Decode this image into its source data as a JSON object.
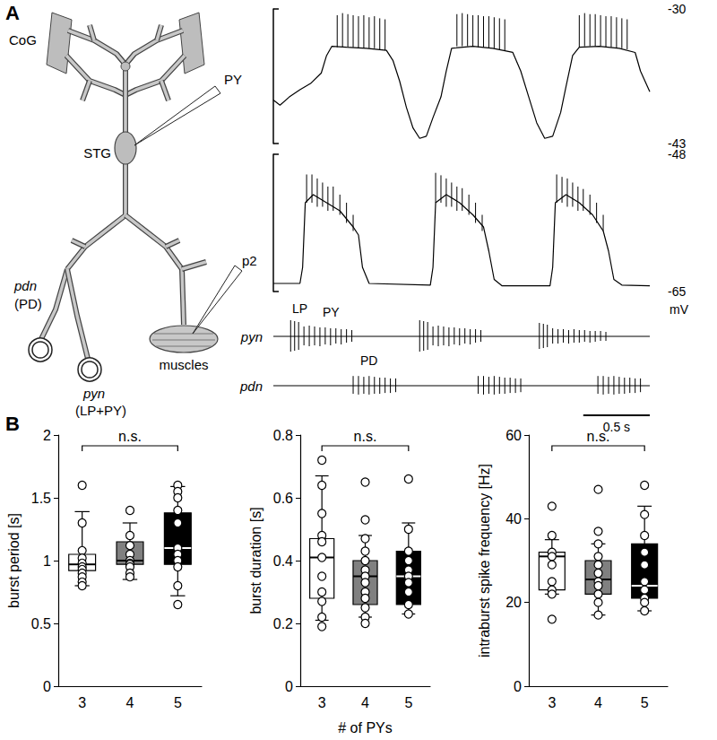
{
  "labels": [
    "A",
    "B"
  ],
  "diagram": {
    "cog": "CoG",
    "py": "PY",
    "stg": "STG",
    "p2": "p2",
    "pdn": "pdn",
    "pdn_sub": "(PD)",
    "pyn": "pyn",
    "pyn_sub": "(LP+PY)",
    "muscles": "muscles"
  },
  "chart_data": [
    {
      "type": "line",
      "xlim": [
        0,
        2.83
      ],
      "ylim": [
        -43,
        -30
      ],
      "yticks": [
        -43,
        -30
      ],
      "x": [
        0,
        0.05,
        0.12,
        0.2,
        0.28,
        0.36,
        0.4,
        0.44,
        0.55,
        0.7,
        0.85,
        0.9,
        0.95,
        1.0,
        1.05,
        1.1,
        1.15,
        1.2,
        1.26,
        1.3,
        1.34,
        1.5,
        1.65,
        1.8,
        1.86,
        1.92,
        1.98,
        2.04,
        2.1,
        2.16,
        2.2,
        2.25,
        2.3,
        2.45,
        2.6,
        2.72,
        2.76,
        2.83
      ],
      "values": [
        -38.8,
        -39.3,
        -38.5,
        -37.8,
        -37.2,
        -36.2,
        -34.5,
        -33.6,
        -33.7,
        -33.8,
        -34,
        -35,
        -37,
        -39.5,
        -41.5,
        -42.5,
        -42.3,
        -40.5,
        -38.5,
        -36,
        -33.8,
        -33.6,
        -33.8,
        -34.2,
        -36,
        -38.5,
        -41,
        -42.5,
        -42.3,
        -40,
        -37.5,
        -34.5,
        -33.7,
        -33.6,
        -33.8,
        -34.2,
        -36,
        -38
      ],
      "spikes": [
        [
          0.48,
          -33.7,
          -30.6
        ],
        [
          0.52,
          -33.7,
          -30.4
        ],
        [
          0.56,
          -33.7,
          -30.5
        ],
        [
          0.6,
          -33.7,
          -30.6
        ],
        [
          0.64,
          -33.8,
          -30.7
        ],
        [
          0.68,
          -33.8,
          -30.6
        ],
        [
          0.72,
          -33.8,
          -30.8
        ],
        [
          0.76,
          -33.8,
          -30.7
        ],
        [
          0.8,
          -33.9,
          -30.9
        ],
        [
          0.84,
          -34,
          -31
        ],
        [
          1.38,
          -33.6,
          -30.5
        ],
        [
          1.42,
          -33.6,
          -30.4
        ],
        [
          1.46,
          -33.6,
          -30.5
        ],
        [
          1.5,
          -33.6,
          -30.6
        ],
        [
          1.54,
          -33.7,
          -30.6
        ],
        [
          1.58,
          -33.7,
          -30.7
        ],
        [
          1.62,
          -33.8,
          -30.7
        ],
        [
          1.66,
          -33.8,
          -30.8
        ],
        [
          1.7,
          -33.9,
          -30.9
        ],
        [
          1.74,
          -34,
          -31
        ],
        [
          2.3,
          -33.7,
          -30.6
        ],
        [
          2.34,
          -33.6,
          -30.4
        ],
        [
          2.38,
          -33.6,
          -30.5
        ],
        [
          2.42,
          -33.6,
          -30.5
        ],
        [
          2.46,
          -33.6,
          -30.6
        ],
        [
          2.5,
          -33.7,
          -30.7
        ],
        [
          2.54,
          -33.7,
          -30.7
        ],
        [
          2.58,
          -33.8,
          -30.8
        ],
        [
          2.62,
          -33.8,
          -30.9
        ],
        [
          2.66,
          -33.9,
          -31
        ]
      ]
    },
    {
      "type": "line",
      "xlim": [
        0,
        2.83
      ],
      "ylim": [
        -65,
        -48
      ],
      "yticks": [
        -65,
        -48
      ],
      "y_label": "mV",
      "x": [
        0,
        0.2,
        0.22,
        0.24,
        0.3,
        0.4,
        0.5,
        0.6,
        0.64,
        0.67,
        0.72,
        1.18,
        1.2,
        1.22,
        1.3,
        1.4,
        1.5,
        1.58,
        1.62,
        1.66,
        1.72,
        2.08,
        2.1,
        2.12,
        2.2,
        2.3,
        2.4,
        2.48,
        2.52,
        2.56,
        2.62,
        2.83
      ],
      "values": [
        -64,
        -64,
        -62,
        -54,
        -53,
        -54,
        -55,
        -57,
        -58,
        -62,
        -64,
        -64.2,
        -62,
        -54,
        -53,
        -54,
        -55.5,
        -57,
        -60,
        -63.5,
        -64.3,
        -64.3,
        -62,
        -54,
        -53,
        -54,
        -55.5,
        -57.5,
        -60,
        -63.5,
        -64.2,
        -64.3
      ],
      "spikes": [
        [
          0.25,
          -54,
          -50.5
        ],
        [
          0.29,
          -54,
          -50.5
        ],
        [
          0.33,
          -54.5,
          -51
        ],
        [
          0.37,
          -54.5,
          -51.5
        ],
        [
          0.41,
          -55,
          -52
        ],
        [
          0.45,
          -55,
          -52
        ],
        [
          0.5,
          -55.5,
          -53
        ],
        [
          0.55,
          -56.5,
          -54
        ],
        [
          0.6,
          -57.5,
          -55.5
        ],
        [
          1.22,
          -54,
          -50.3
        ],
        [
          1.26,
          -54,
          -50.6
        ],
        [
          1.3,
          -54.5,
          -51
        ],
        [
          1.34,
          -54.5,
          -51.5
        ],
        [
          1.38,
          -55,
          -52
        ],
        [
          1.42,
          -55,
          -52.2
        ],
        [
          1.47,
          -55.5,
          -53
        ],
        [
          1.52,
          -56.5,
          -54
        ],
        [
          1.57,
          -57.5,
          -55.5
        ],
        [
          2.13,
          -54,
          -50.5
        ],
        [
          2.17,
          -54,
          -50.8
        ],
        [
          2.21,
          -54.5,
          -51
        ],
        [
          2.25,
          -54.5,
          -51.5
        ],
        [
          2.29,
          -55,
          -52
        ],
        [
          2.33,
          -55,
          -52.3
        ],
        [
          2.38,
          -55.5,
          -53
        ],
        [
          2.43,
          -56.5,
          -54
        ],
        [
          2.48,
          -57.5,
          -55.5
        ]
      ]
    },
    {
      "type": "extracellular",
      "label": "pyn",
      "annotations": [
        "LP",
        "PY"
      ],
      "xlim": [
        0,
        2.83
      ],
      "ylim": [
        -1,
        1
      ],
      "baseline": 0,
      "tick_labels": false,
      "spikes": [
        [
          0.13,
          -0.85,
          0.9
        ],
        [
          0.16,
          -0.8,
          0.85
        ],
        [
          0.19,
          -0.75,
          0.8
        ],
        [
          0.23,
          -0.5,
          0.55
        ],
        [
          0.27,
          -0.55,
          0.6
        ],
        [
          0.31,
          -0.5,
          0.55
        ],
        [
          0.35,
          -0.55,
          0.5
        ],
        [
          0.39,
          -0.45,
          0.5
        ],
        [
          0.43,
          -0.5,
          0.45
        ],
        [
          0.47,
          -0.4,
          0.45
        ],
        [
          0.51,
          -0.45,
          0.4
        ],
        [
          0.55,
          -0.35,
          0.4
        ],
        [
          0.59,
          -0.3,
          0.35
        ],
        [
          1.1,
          -0.85,
          0.9
        ],
        [
          1.13,
          -0.8,
          0.85
        ],
        [
          1.16,
          -0.75,
          0.8
        ],
        [
          1.2,
          -0.5,
          0.55
        ],
        [
          1.24,
          -0.55,
          0.6
        ],
        [
          1.28,
          -0.5,
          0.55
        ],
        [
          1.32,
          -0.55,
          0.5
        ],
        [
          1.36,
          -0.45,
          0.5
        ],
        [
          1.4,
          -0.5,
          0.45
        ],
        [
          1.44,
          -0.4,
          0.45
        ],
        [
          1.48,
          -0.45,
          0.4
        ],
        [
          1.52,
          -0.35,
          0.4
        ],
        [
          1.56,
          -0.3,
          0.35
        ],
        [
          2.0,
          -0.7,
          0.75
        ],
        [
          2.03,
          -0.65,
          0.7
        ],
        [
          2.06,
          -0.6,
          0.65
        ],
        [
          2.1,
          -0.4,
          0.45
        ],
        [
          2.14,
          -0.4,
          0.4
        ],
        [
          2.18,
          -0.35,
          0.4
        ],
        [
          2.22,
          -0.4,
          0.35
        ],
        [
          2.26,
          -0.35,
          0.4
        ],
        [
          2.3,
          -0.35,
          0.35
        ],
        [
          2.34,
          -0.3,
          0.35
        ],
        [
          2.38,
          -0.35,
          0.3
        ],
        [
          2.42,
          -0.3,
          0.3
        ],
        [
          2.46,
          -0.25,
          0.3
        ],
        [
          2.5,
          -0.25,
          0.25
        ]
      ]
    },
    {
      "type": "extracellular",
      "label": "pdn",
      "annotations": [
        "PD"
      ],
      "xlim": [
        0,
        2.83
      ],
      "ylim": [
        -1,
        1
      ],
      "baseline": 0,
      "tick_labels": false,
      "spikes": [
        [
          0.6,
          -0.5,
          0.6
        ],
        [
          0.64,
          -0.55,
          0.6
        ],
        [
          0.68,
          -0.5,
          0.55
        ],
        [
          0.72,
          -0.55,
          0.6
        ],
        [
          0.76,
          -0.5,
          0.55
        ],
        [
          0.8,
          -0.5,
          0.5
        ],
        [
          0.84,
          -0.45,
          0.5
        ],
        [
          0.88,
          -0.45,
          0.45
        ],
        [
          0.92,
          -0.4,
          0.45
        ],
        [
          1.54,
          -0.5,
          0.6
        ],
        [
          1.58,
          -0.55,
          0.6
        ],
        [
          1.62,
          -0.5,
          0.55
        ],
        [
          1.66,
          -0.55,
          0.6
        ],
        [
          1.7,
          -0.5,
          0.55
        ],
        [
          1.74,
          -0.5,
          0.5
        ],
        [
          1.78,
          -0.45,
          0.5
        ],
        [
          1.82,
          -0.45,
          0.45
        ],
        [
          1.86,
          -0.4,
          0.45
        ],
        [
          2.44,
          -0.5,
          0.6
        ],
        [
          2.48,
          -0.55,
          0.6
        ],
        [
          2.52,
          -0.5,
          0.55
        ],
        [
          2.56,
          -0.55,
          0.6
        ],
        [
          2.6,
          -0.5,
          0.55
        ],
        [
          2.64,
          -0.5,
          0.5
        ],
        [
          2.68,
          -0.45,
          0.5
        ],
        [
          2.72,
          -0.45,
          0.45
        ],
        [
          2.76,
          -0.4,
          0.45
        ]
      ]
    },
    {
      "type": "scale_bar",
      "xlim": [
        0,
        2.83
      ],
      "value": 0.5,
      "label": "0.5 s"
    },
    {
      "type": "boxplot",
      "categories": [
        "3",
        "4",
        "5"
      ],
      "colors": [
        "#ffffff",
        "#808080",
        "#000000"
      ],
      "ylabel": "burst period [s]",
      "ylim": [
        0,
        2
      ],
      "yticks": [
        0,
        0.5,
        1,
        1.5,
        2
      ],
      "significance": {
        "label": "n.s.",
        "from": "3",
        "to": "5"
      },
      "boxes": [
        [
          0.8,
          0.92,
          0.97,
          1.05,
          1.39
        ],
        [
          0.85,
          0.97,
          1.0,
          1.15,
          1.3
        ],
        [
          0.72,
          0.97,
          1.1,
          1.38,
          1.59
        ]
      ],
      "points": [
        [
          1.6,
          1.3,
          1.08,
          1.02,
          0.98,
          0.95,
          0.93,
          0.9,
          0.87,
          0.83,
          0.8
        ],
        [
          1.4,
          1.2,
          1.12,
          1.05,
          1.0,
          0.98,
          0.97,
          0.95,
          0.9,
          0.87
        ],
        [
          1.6,
          1.55,
          1.5,
          1.4,
          1.3,
          1.1,
          1.05,
          1.0,
          0.95,
          0.8,
          0.65
        ]
      ]
    },
    {
      "type": "boxplot",
      "categories": [
        "3",
        "4",
        "5"
      ],
      "colors": [
        "#ffffff",
        "#808080",
        "#000000"
      ],
      "ylabel": "burst duration [s]",
      "xlabel": "# of PYs",
      "ylim": [
        0,
        0.8
      ],
      "yticks": [
        0,
        0.2,
        0.4,
        0.6,
        0.8
      ],
      "significance": {
        "label": "n.s.",
        "from": "3",
        "to": "5"
      },
      "boxes": [
        [
          0.21,
          0.28,
          0.41,
          0.47,
          0.67
        ],
        [
          0.22,
          0.26,
          0.35,
          0.4,
          0.48
        ],
        [
          0.23,
          0.26,
          0.35,
          0.43,
          0.52
        ]
      ],
      "points": [
        [
          0.72,
          0.64,
          0.55,
          0.48,
          0.46,
          0.41,
          0.35,
          0.3,
          0.27,
          0.22,
          0.19
        ],
        [
          0.65,
          0.53,
          0.47,
          0.43,
          0.4,
          0.37,
          0.35,
          0.33,
          0.3,
          0.28,
          0.25,
          0.22,
          0.2
        ],
        [
          0.66,
          0.5,
          0.43,
          0.4,
          0.37,
          0.35,
          0.33,
          0.3,
          0.26,
          0.23
        ]
      ]
    },
    {
      "type": "boxplot",
      "categories": [
        "3",
        "4",
        "5"
      ],
      "colors": [
        "#ffffff",
        "#808080",
        "#000000"
      ],
      "ylabel": "intraburst spike frequency [Hz]",
      "ylim": [
        0,
        60
      ],
      "yticks": [
        0,
        20,
        40,
        60
      ],
      "significance": {
        "label": "n.s.",
        "from": "3",
        "to": "5"
      },
      "boxes": [
        [
          22,
          23,
          31,
          32,
          35
        ],
        [
          17,
          22,
          25.5,
          30,
          34
        ],
        [
          18,
          21,
          24,
          34,
          43
        ]
      ],
      "points": [
        [
          43,
          36,
          32,
          31,
          29,
          25,
          23,
          22,
          16
        ],
        [
          47,
          37,
          34,
          31,
          29,
          27,
          25,
          24,
          22,
          20,
          17
        ],
        [
          48,
          41,
          36,
          32,
          29,
          25,
          23,
          21,
          20,
          18
        ]
      ]
    }
  ]
}
